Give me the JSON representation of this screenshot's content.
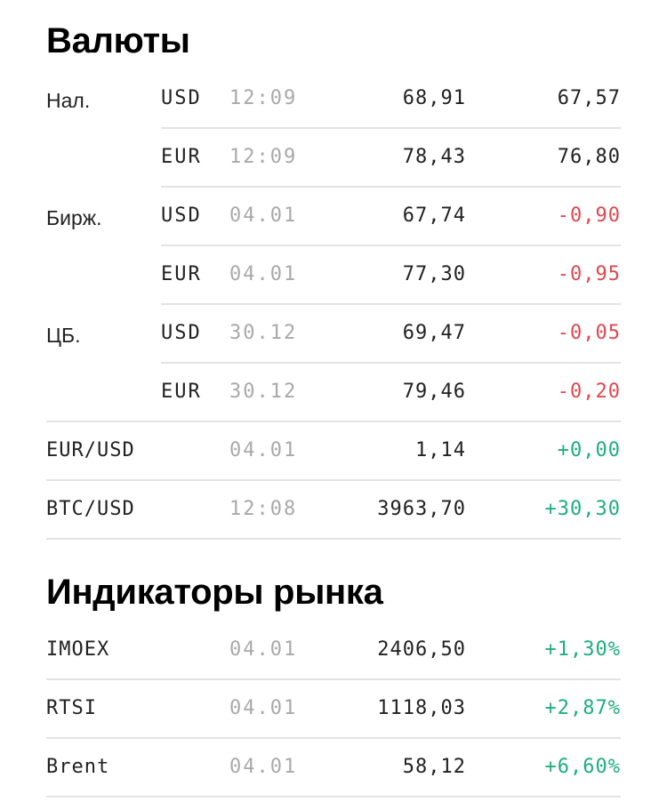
{
  "currencies": {
    "title": "Валюты",
    "rows": [
      {
        "group": "Нал.",
        "code": "USD",
        "time": "12:09",
        "value": "68,91",
        "change": "67,57",
        "trend": "neutral"
      },
      {
        "group": "",
        "code": "EUR",
        "time": "12:09",
        "value": "78,43",
        "change": "76,80",
        "trend": "neutral"
      },
      {
        "group": "Бирж.",
        "code": "USD",
        "time": "04.01",
        "value": "67,74",
        "change": "-0,90",
        "trend": "down"
      },
      {
        "group": "",
        "code": "EUR",
        "time": "04.01",
        "value": "77,30",
        "change": "-0,95",
        "trend": "down"
      },
      {
        "group": "ЦБ.",
        "code": "USD",
        "time": "30.12",
        "value": "69,47",
        "change": "-0,05",
        "trend": "down"
      },
      {
        "group": "",
        "code": "EUR",
        "time": "30.12",
        "value": "79,46",
        "change": "-0,20",
        "trend": "down"
      },
      {
        "name": "EUR/USD",
        "time": "04.01",
        "value": "1,14",
        "change": "+0,00",
        "trend": "up"
      },
      {
        "name": "BTC/USD",
        "time": "12:08",
        "value": "3963,70",
        "change": "+30,30",
        "trend": "up"
      }
    ]
  },
  "indicators": {
    "title": "Индикаторы рынка",
    "rows": [
      {
        "name": "IMOEX",
        "time": "04.01",
        "value": "2406,50",
        "change": "+1,30%",
        "trend": "up"
      },
      {
        "name": "RTSI",
        "time": "04.01",
        "value": "1118,03",
        "change": "+2,87%",
        "trend": "up"
      },
      {
        "name": "Brent",
        "time": "04.01",
        "value": "58,12",
        "change": "+6,60%",
        "trend": "up"
      }
    ]
  },
  "colors": {
    "up": "#1fae7f",
    "down": "#e2474f",
    "neutral": "#222222",
    "time": "#a9a9a9",
    "divider": "#e3e3e3"
  }
}
